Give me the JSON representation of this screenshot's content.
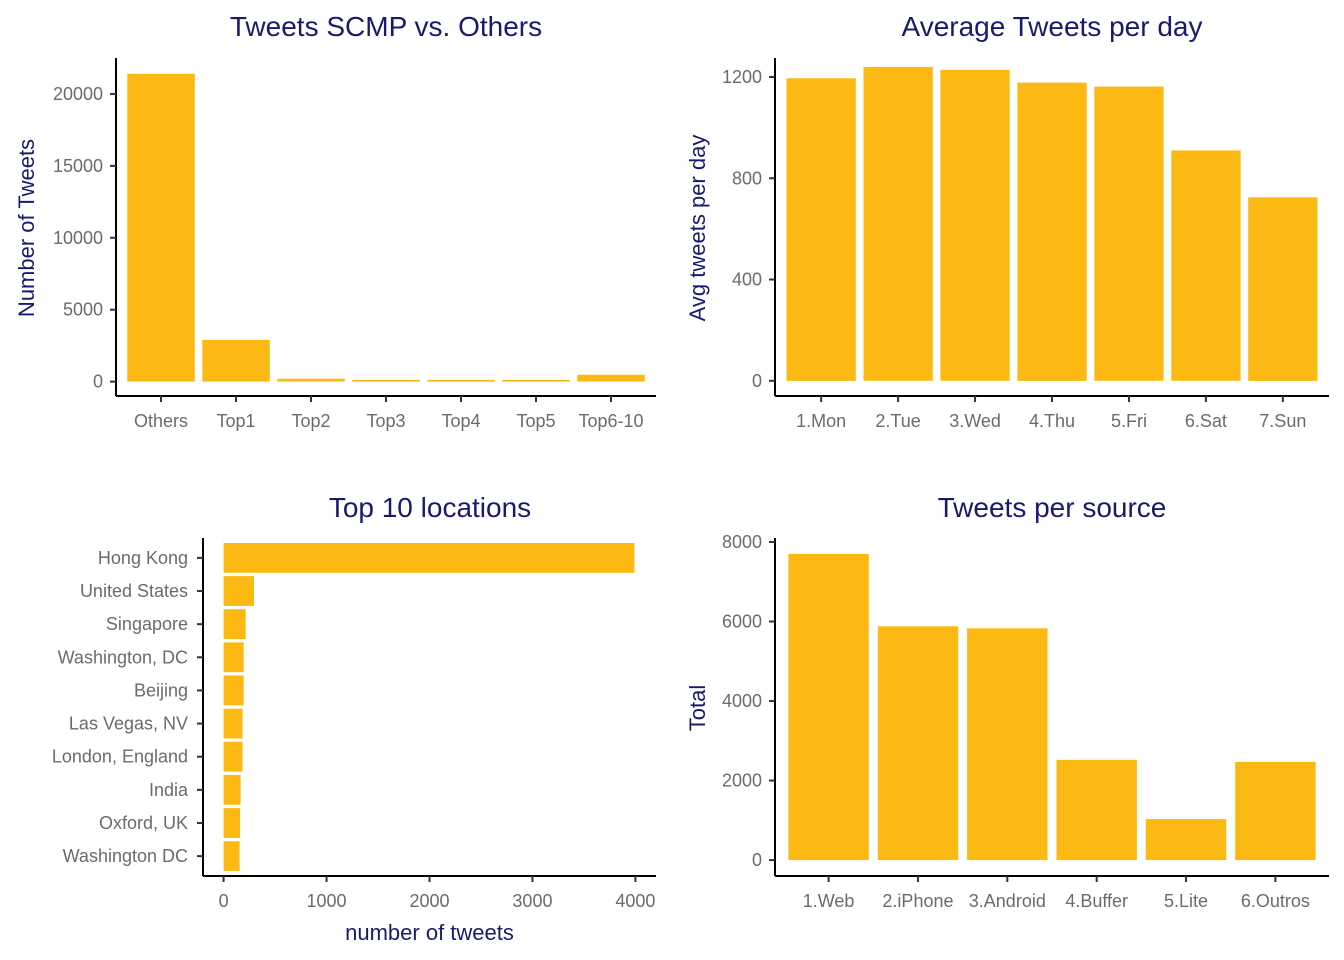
{
  "colors": {
    "bar": "#FDB913",
    "title": "#191970",
    "tick": "#6b6b6b"
  },
  "chart_data": [
    {
      "type": "bar",
      "orientation": "vertical",
      "title": "Tweets SCMP vs. Others",
      "xlabel": "",
      "ylabel": "Number of Tweets",
      "categories": [
        "Others",
        "Top1",
        "Top2",
        "Top3",
        "Top4",
        "Top5",
        "Top6-10"
      ],
      "values": [
        21400,
        2900,
        200,
        120,
        120,
        120,
        480
      ],
      "yticks": [
        "0",
        "5000",
        "10000",
        "15000",
        "20000"
      ],
      "ylim": [
        -1000,
        22500
      ],
      "grid": false
    },
    {
      "type": "bar",
      "orientation": "vertical",
      "title": "Average Tweets per day",
      "xlabel": "",
      "ylabel": "Avg tweets per day",
      "categories": [
        "1.Mon",
        "2.Tue",
        "3.Wed",
        "4.Thu",
        "5.Fri",
        "6.Sat",
        "7.Sun"
      ],
      "values": [
        1195,
        1240,
        1228,
        1178,
        1162,
        910,
        725
      ],
      "yticks": [
        "0",
        "400",
        "800",
        "1200"
      ],
      "ylim": [
        -60,
        1275
      ],
      "grid": false
    },
    {
      "type": "bar",
      "orientation": "horizontal",
      "title": "Top 10 locations",
      "xlabel": "number of tweets",
      "ylabel": "",
      "categories": [
        "Hong Kong",
        "United States",
        "Singapore",
        "Washington, DC",
        "Beijing",
        "Las Vegas, NV",
        "London, England",
        "India",
        "Oxford, UK",
        "Washington DC"
      ],
      "values": [
        3990,
        295,
        215,
        195,
        195,
        185,
        185,
        165,
        160,
        155
      ],
      "xticks": [
        "0",
        "1000",
        "2000",
        "3000",
        "4000"
      ],
      "xlim": [
        -200,
        4200
      ],
      "grid": false
    },
    {
      "type": "bar",
      "orientation": "vertical",
      "title": "Tweets per source",
      "xlabel": "",
      "ylabel": "Total",
      "categories": [
        "1.Web",
        "2.iPhone",
        "3.Android",
        "4.Buffer",
        "5.Lite",
        "6.Outros"
      ],
      "values": [
        7700,
        5880,
        5830,
        2520,
        1030,
        2470
      ],
      "yticks": [
        "0",
        "2000",
        "4000",
        "6000",
        "8000"
      ],
      "ylim": [
        -400,
        8100
      ],
      "grid": false
    }
  ]
}
